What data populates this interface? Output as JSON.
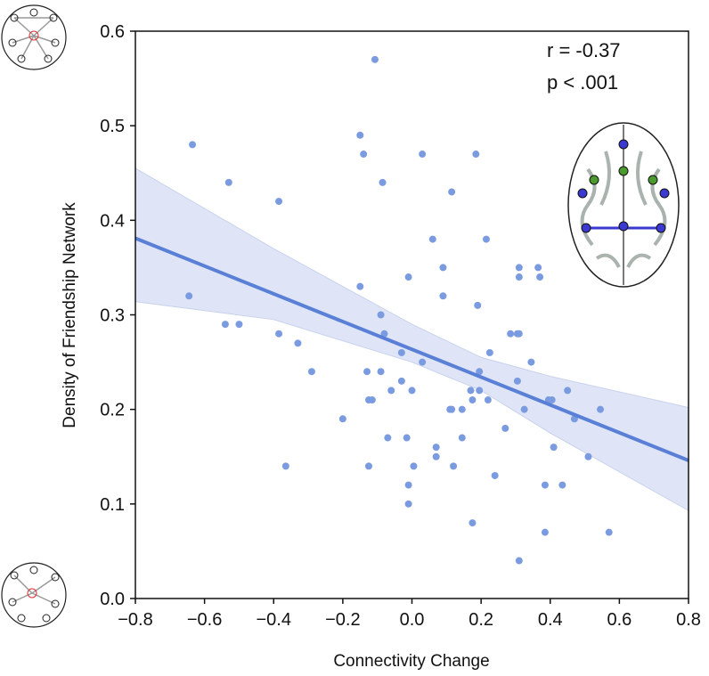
{
  "chart_data": {
    "type": "scatter",
    "xlabel": "Connectivity Change",
    "ylabel": "Density of Friendship Network",
    "annotations": [
      "r = -0.37",
      "p < .001"
    ],
    "xlim": [
      -0.8,
      0.8
    ],
    "ylim": [
      0.0,
      0.6
    ],
    "xticks": [
      {
        "value": -0.8,
        "label": "−0.8"
      },
      {
        "value": -0.6,
        "label": "−0.6"
      },
      {
        "value": -0.4,
        "label": "−0.4"
      },
      {
        "value": -0.2,
        "label": "−0.2"
      },
      {
        "value": 0,
        "label": "0.0"
      },
      0.2,
      0.4,
      0.6,
      0.8
    ],
    "yticks": [
      {
        "value": 0,
        "label": "0.0"
      },
      0.1,
      0.2,
      0.3,
      0.4,
      0.5,
      0.6
    ],
    "series": [
      {
        "color": "#7b9be0",
        "x": [
          -0.635,
          -0.645,
          -0.53,
          -0.54,
          -0.5,
          -0.385,
          -0.385,
          -0.33,
          -0.29,
          -0.365,
          -0.2,
          -0.107,
          -0.15,
          -0.14,
          -0.085,
          -0.15,
          -0.09,
          -0.08,
          -0.13,
          -0.09,
          -0.125,
          -0.115,
          -0.125,
          -0.06,
          -0.07,
          -0.03,
          -0.03,
          -0.01,
          0.03,
          0.03,
          0.0,
          -0.015,
          0.005,
          -0.01,
          -0.01,
          0.06,
          0.09,
          0.09,
          0.07,
          0.07,
          0.115,
          0.11,
          0.115,
          0.12,
          0.145,
          0.145,
          0.185,
          0.19,
          0.195,
          0.17,
          0.195,
          0.175,
          0.215,
          0.22,
          0.225,
          0.24,
          0.175,
          0.285,
          0.305,
          0.31,
          0.31,
          0.31,
          0.305,
          0.27,
          0.325,
          0.345,
          0.365,
          0.37,
          0.31,
          0.395,
          0.405,
          0.385,
          0.385,
          0.41,
          0.435,
          0.45,
          0.47,
          0.51,
          0.545,
          0.57
        ],
        "values": [
          0.48,
          0.32,
          0.44,
          0.29,
          0.29,
          0.42,
          0.28,
          0.27,
          0.24,
          0.14,
          0.19,
          0.57,
          0.49,
          0.47,
          0.44,
          0.33,
          0.3,
          0.28,
          0.24,
          0.24,
          0.21,
          0.21,
          0.14,
          0.22,
          0.17,
          0.23,
          0.26,
          0.34,
          0.47,
          0.25,
          0.22,
          0.17,
          0.14,
          0.12,
          0.1,
          0.38,
          0.35,
          0.32,
          0.16,
          0.15,
          0.43,
          0.2,
          0.2,
          0.14,
          0.2,
          0.17,
          0.47,
          0.31,
          0.24,
          0.22,
          0.22,
          0.21,
          0.38,
          0.21,
          0.26,
          0.13,
          0.08,
          0.28,
          0.28,
          0.28,
          0.35,
          0.34,
          0.23,
          0.18,
          0.2,
          0.25,
          0.35,
          0.34,
          0.04,
          0.21,
          0.21,
          0.12,
          0.07,
          0.16,
          0.12,
          0.22,
          0.19,
          0.15,
          0.2,
          0.07
        ]
      }
    ],
    "fit_line": {
      "color": "#5a7fd6",
      "x": [
        -0.8,
        0.8
      ],
      "values": [
        0.381,
        0.146
      ]
    },
    "ci_band": {
      "color": "#dfe5f6",
      "x": [
        -0.8,
        -0.4,
        0,
        0.2,
        0.4,
        0.8
      ],
      "upper": [
        0.455,
        0.37,
        0.29,
        0.255,
        0.235,
        0.202
      ],
      "lower": [
        0.314,
        0.295,
        0.25,
        0.22,
        0.175,
        0.093
      ]
    }
  }
}
